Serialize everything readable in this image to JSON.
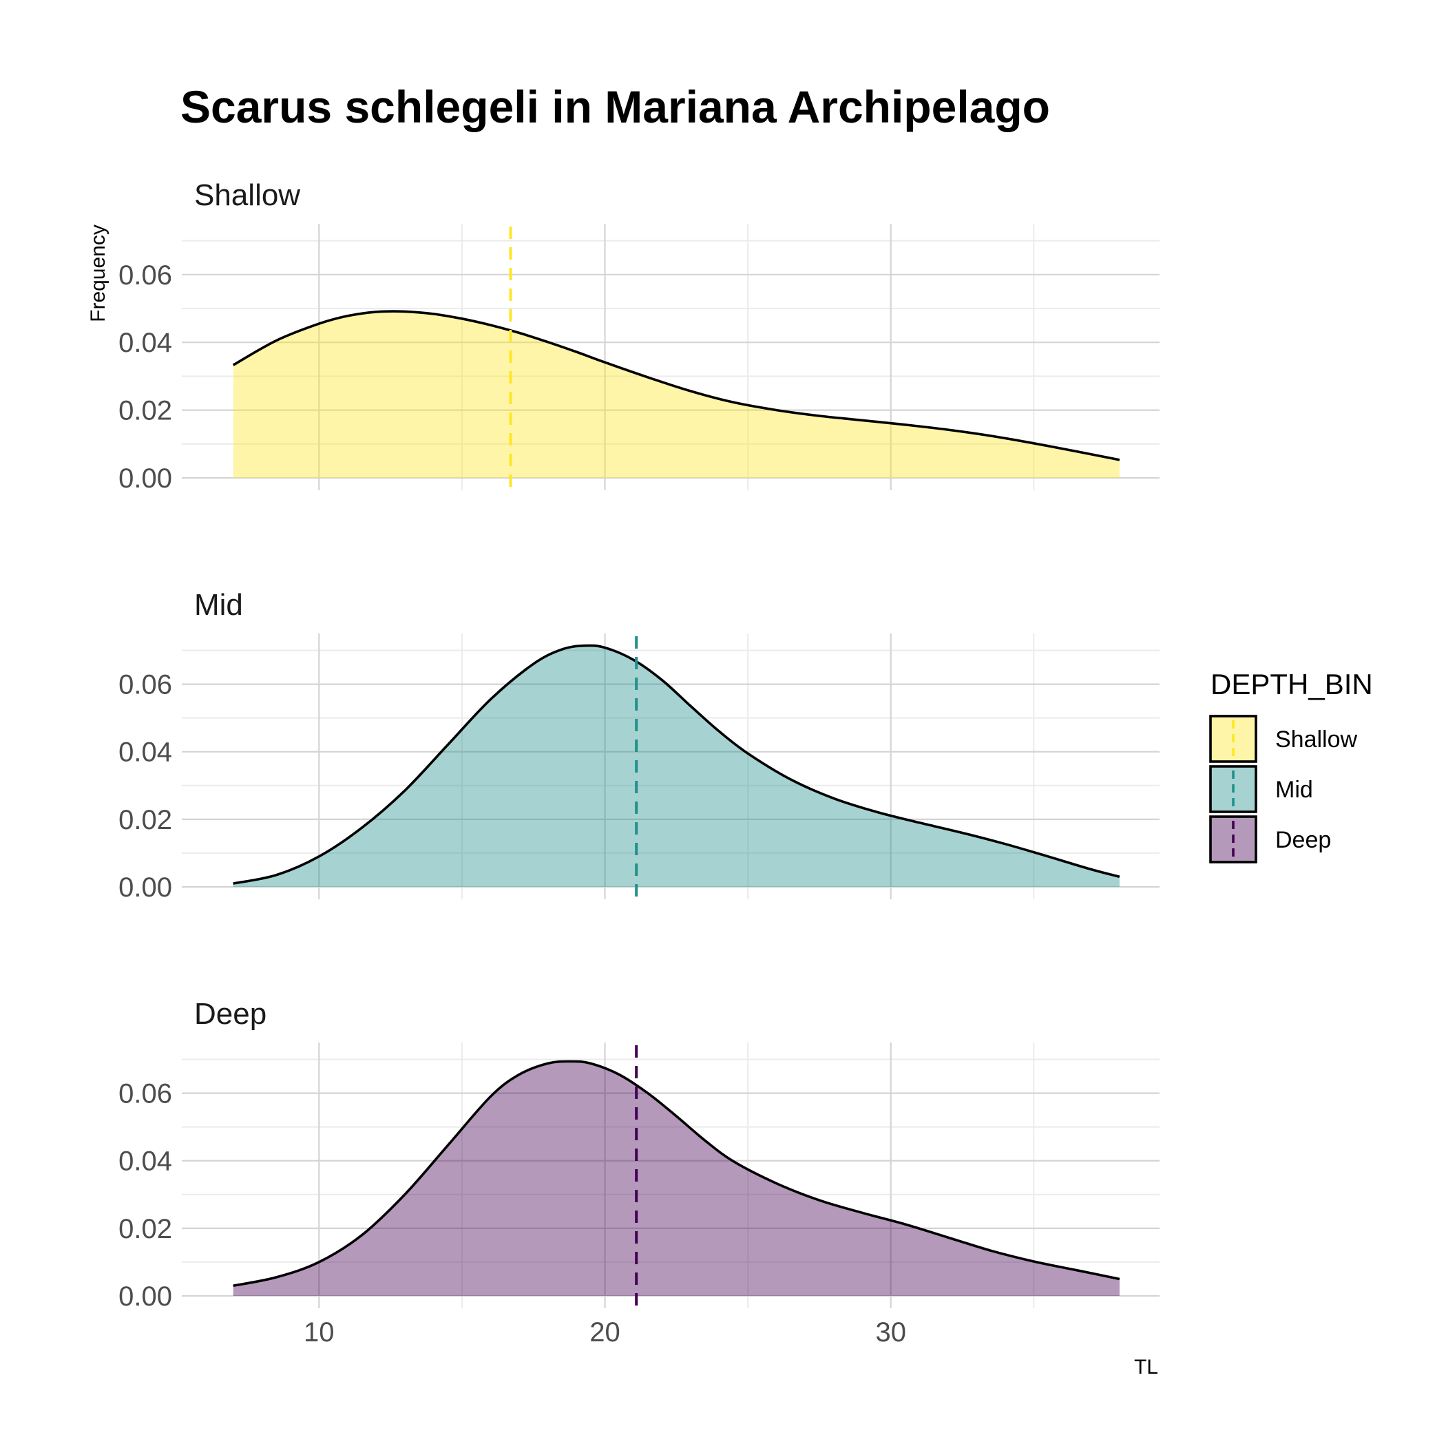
{
  "chart_data": {
    "type": "area",
    "title": "Scarus schlegeli in Mariana Archipelago",
    "xlabel": "TL",
    "ylabel": "Frequency",
    "xlim": [
      5.2,
      39.4
    ],
    "ylim": [
      0,
      0.075
    ],
    "x_ticks": [
      10,
      20,
      30
    ],
    "x_tick_labels": [
      "10",
      "20",
      "30"
    ],
    "y_ticks": [
      0,
      0.02,
      0.04,
      0.06
    ],
    "y_tick_labels": [
      "0.00",
      "0.02",
      "0.04",
      "0.06"
    ],
    "grid": true,
    "legend": {
      "title": "DEPTH_BIN",
      "position": "right",
      "entries": [
        "Shallow",
        "Mid",
        "Deep"
      ]
    },
    "series": [
      {
        "name": "Shallow",
        "color": "#FDE725",
        "mean_line": 16.7,
        "x": [
          7.0,
          8.5,
          10.0,
          11.0,
          12.0,
          13.0,
          14.0,
          15.0,
          16.0,
          17.0,
          18.0,
          19.0,
          20.0,
          21.5,
          23.0,
          24.5,
          26.0,
          27.5,
          29.0,
          30.5,
          32.0,
          33.5,
          35.0,
          36.5,
          38.0
        ],
        "values": [
          0.0333,
          0.0405,
          0.0455,
          0.0478,
          0.049,
          0.0491,
          0.0484,
          0.047,
          0.0451,
          0.0428,
          0.0401,
          0.0372,
          0.0341,
          0.0297,
          0.0256,
          0.0223,
          0.02,
          0.0183,
          0.017,
          0.0157,
          0.0142,
          0.0124,
          0.0102,
          0.0078,
          0.0053
        ]
      },
      {
        "name": "Mid",
        "color": "#21908C",
        "mean_line": 21.1,
        "x": [
          7.0,
          8.5,
          10.0,
          11.5,
          13.0,
          14.5,
          16.0,
          17.5,
          18.5,
          19.3,
          20.0,
          21.0,
          22.0,
          23.0,
          24.0,
          25.0,
          26.5,
          28.0,
          29.5,
          31.0,
          32.5,
          34.0,
          35.5,
          37.0,
          38.0
        ],
        "values": [
          0.001,
          0.0035,
          0.009,
          0.0175,
          0.0285,
          0.042,
          0.0555,
          0.066,
          0.0703,
          0.0714,
          0.0708,
          0.0672,
          0.0612,
          0.0535,
          0.046,
          0.0395,
          0.0318,
          0.0262,
          0.0222,
          0.019,
          0.016,
          0.0127,
          0.009,
          0.0052,
          0.003
        ]
      },
      {
        "name": "Deep",
        "color": "#440154",
        "mean_line": 21.1,
        "x": [
          7.0,
          8.5,
          10.0,
          11.5,
          13.0,
          14.5,
          16.0,
          17.0,
          18.0,
          18.8,
          19.5,
          20.5,
          21.5,
          22.5,
          23.5,
          24.5,
          26.0,
          27.5,
          29.0,
          30.5,
          32.0,
          33.5,
          35.0,
          36.5,
          38.0
        ],
        "values": [
          0.003,
          0.0055,
          0.01,
          0.018,
          0.03,
          0.0445,
          0.059,
          0.0655,
          0.0688,
          0.0694,
          0.0688,
          0.0655,
          0.06,
          0.0532,
          0.046,
          0.0398,
          0.0333,
          0.0283,
          0.0246,
          0.0212,
          0.0173,
          0.0134,
          0.0102,
          0.0076,
          0.005
        ]
      }
    ]
  }
}
